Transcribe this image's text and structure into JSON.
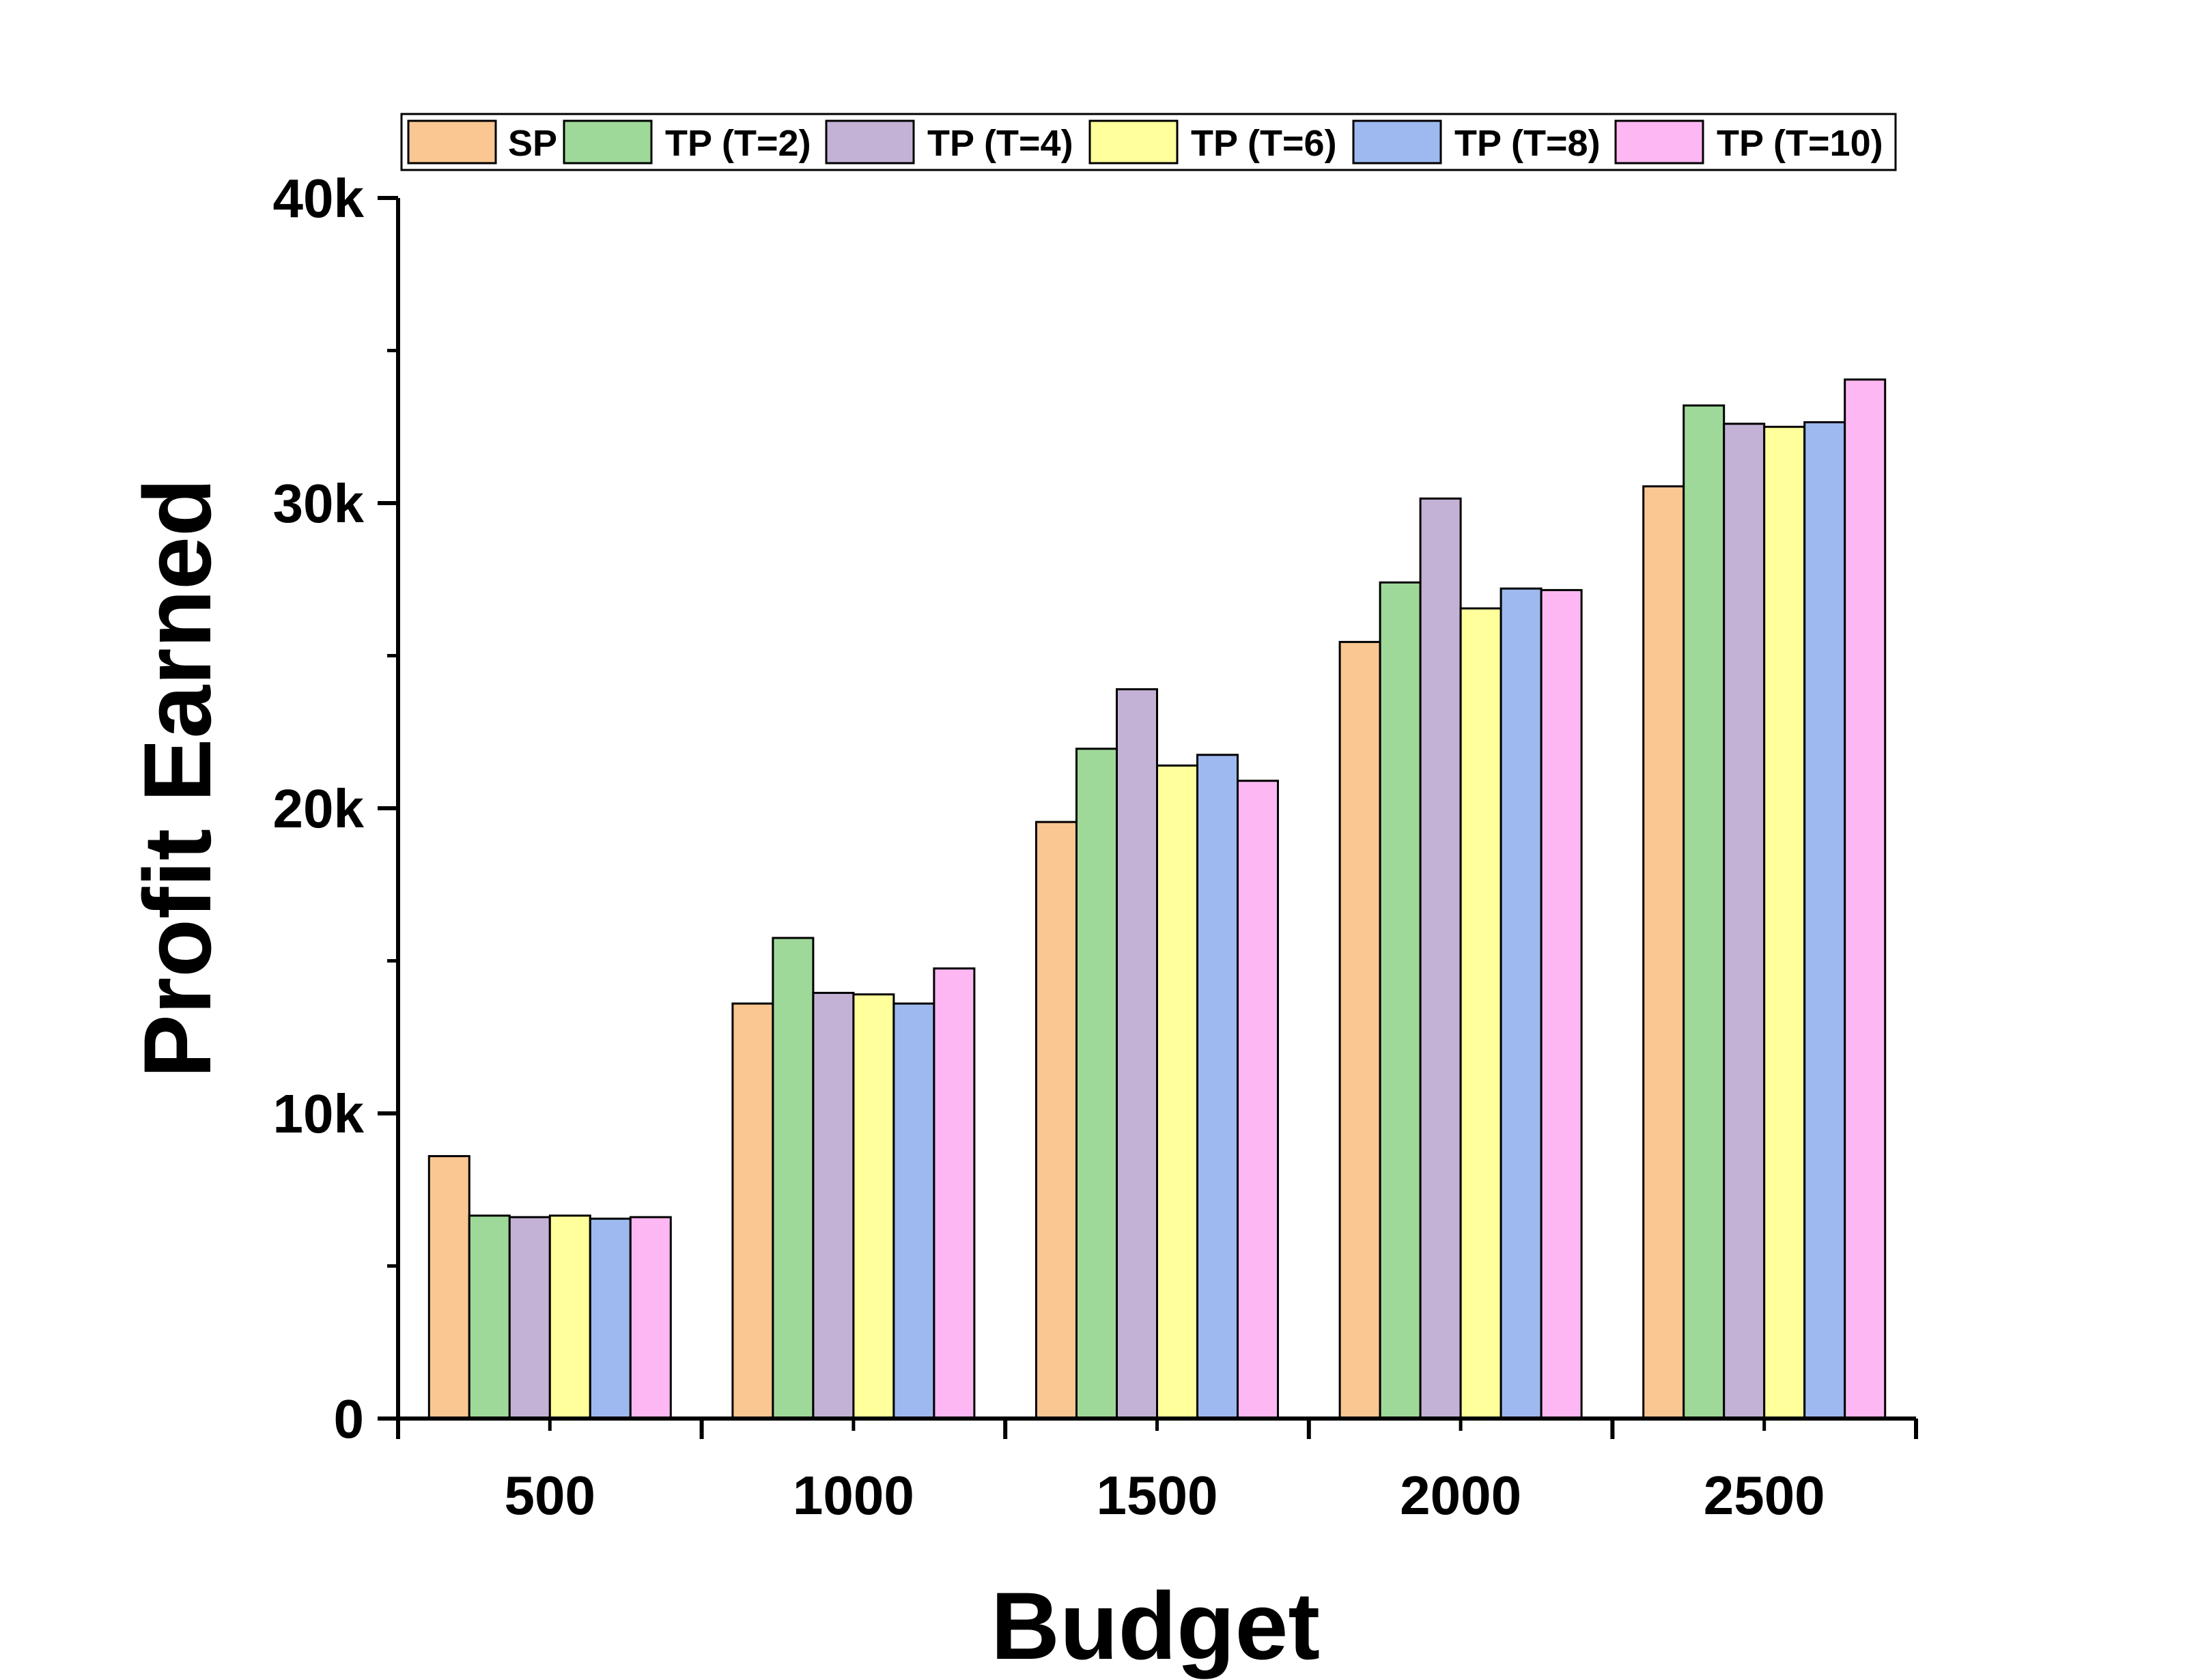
{
  "chart_data": {
    "type": "bar",
    "title": "",
    "xlabel": "Budget",
    "ylabel": "Profit Earned",
    "categories": [
      "500",
      "1000",
      "1500",
      "2000",
      "2500"
    ],
    "ylim": [
      0,
      40000
    ],
    "yticks": [
      {
        "value": 0,
        "label": "0"
      },
      {
        "value": 10000,
        "label": "10k"
      },
      {
        "value": 20000,
        "label": "20k"
      },
      {
        "value": 30000,
        "label": "30k"
      },
      {
        "value": 40000,
        "label": "40k"
      }
    ],
    "grid": false,
    "legend_position": "top",
    "series": [
      {
        "name": "SP",
        "color": "#FAC691",
        "values": [
          8600,
          13600,
          19550,
          25450,
          30550
        ]
      },
      {
        "name": "TP (T=2)",
        "color": "#9FD99A",
        "values": [
          6650,
          15750,
          21950,
          27400,
          33200
        ]
      },
      {
        "name": "TP (T=4)",
        "color": "#C4B2D6",
        "values": [
          6600,
          13950,
          23900,
          30150,
          32600
        ]
      },
      {
        "name": "TP (T=6)",
        "color": "#FFFF9C",
        "values": [
          6650,
          13900,
          21400,
          26550,
          32500
        ]
      },
      {
        "name": "TP (T=8)",
        "color": "#9DB9EF",
        "values": [
          6550,
          13600,
          21750,
          27200,
          32650
        ]
      },
      {
        "name": "TP (T=10)",
        "color": "#FDB7F2",
        "values": [
          6600,
          14750,
          20900,
          27150,
          34050
        ]
      }
    ]
  }
}
